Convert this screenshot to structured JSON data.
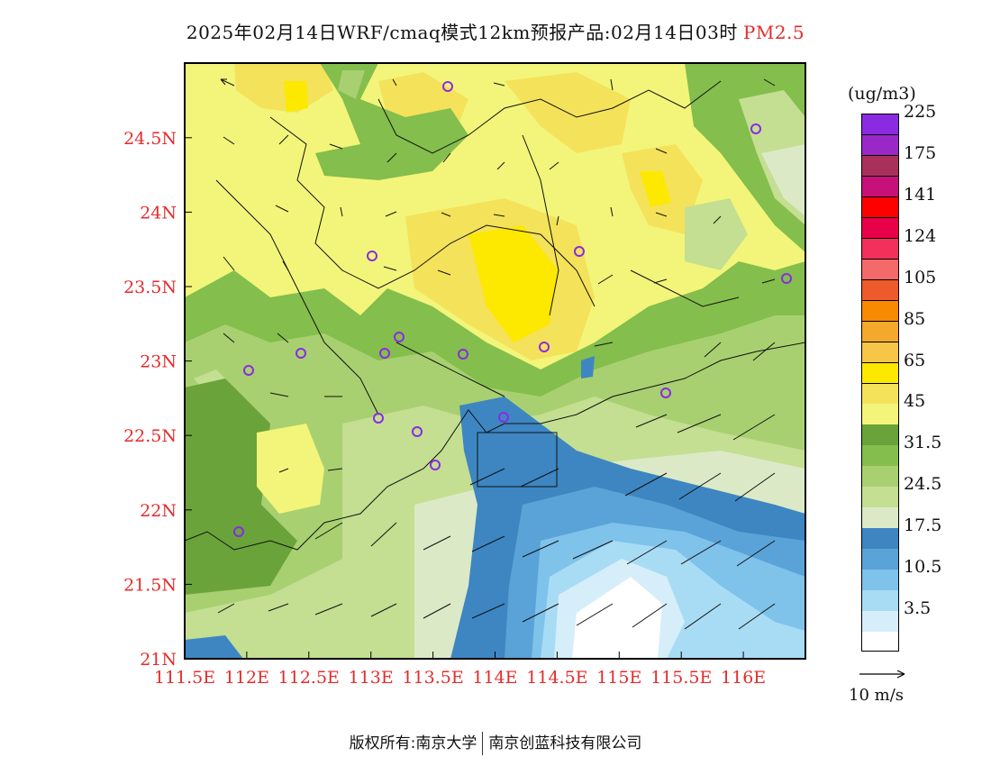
{
  "header": {
    "title": "2025年02月14日WRF/cmaq模式12km预报产品:02月14日03时",
    "pollutant": "PM2.5",
    "pollutant_color": "#e52b2b"
  },
  "map": {
    "lon_ticks": [
      "111.5E",
      "112E",
      "112.5E",
      "113E",
      "113.5E",
      "114E",
      "114.5E",
      "115E",
      "115.5E",
      "116E"
    ],
    "lat_ticks": [
      "21N",
      "21.5N",
      "22N",
      "22.5N",
      "23N",
      "23.5N",
      "24N",
      "24.5N"
    ],
    "tick_color": "#e52b2b",
    "station_marker_color": "#8a2be2"
  },
  "legend": {
    "unit": "(ug/m3)",
    "levels": [
      {
        "color": "#ffffff"
      },
      {
        "color": "#d6eefa",
        "label": "3.5"
      },
      {
        "color": "#a8dcf4"
      },
      {
        "color": "#7fc2ea",
        "label": "10.5"
      },
      {
        "color": "#5aa3d8"
      },
      {
        "color": "#3d86c2",
        "label": "17.5"
      },
      {
        "color": "#dce9c6"
      },
      {
        "color": "#c4de92",
        "label": "24.5"
      },
      {
        "color": "#a8d070"
      },
      {
        "color": "#84be4c",
        "label": "31.5"
      },
      {
        "color": "#6aa33a"
      },
      {
        "color": "#f2f57a",
        "label": "45"
      },
      {
        "color": "#f4e25a"
      },
      {
        "color": "#fde800",
        "label": "65"
      },
      {
        "color": "#f7c548"
      },
      {
        "color": "#f4a92c",
        "label": "85"
      },
      {
        "color": "#f78a00"
      },
      {
        "color": "#ee5a2c",
        "label": "105"
      },
      {
        "color": "#f46a6a"
      },
      {
        "color": "#f2305a",
        "label": "124"
      },
      {
        "color": "#e8004a"
      },
      {
        "color": "#ff0000",
        "label": "141"
      },
      {
        "color": "#c8107a"
      },
      {
        "color": "#a8305a",
        "label": "175"
      },
      {
        "color": "#9a28c8"
      },
      {
        "color": "#8a2be2",
        "label": "225"
      }
    ]
  },
  "wind_legend": {
    "label": "10 m/s"
  },
  "footer": {
    "copyright": "版权所有:南京大学",
    "company": "南京创蓝科技有限公司"
  }
}
